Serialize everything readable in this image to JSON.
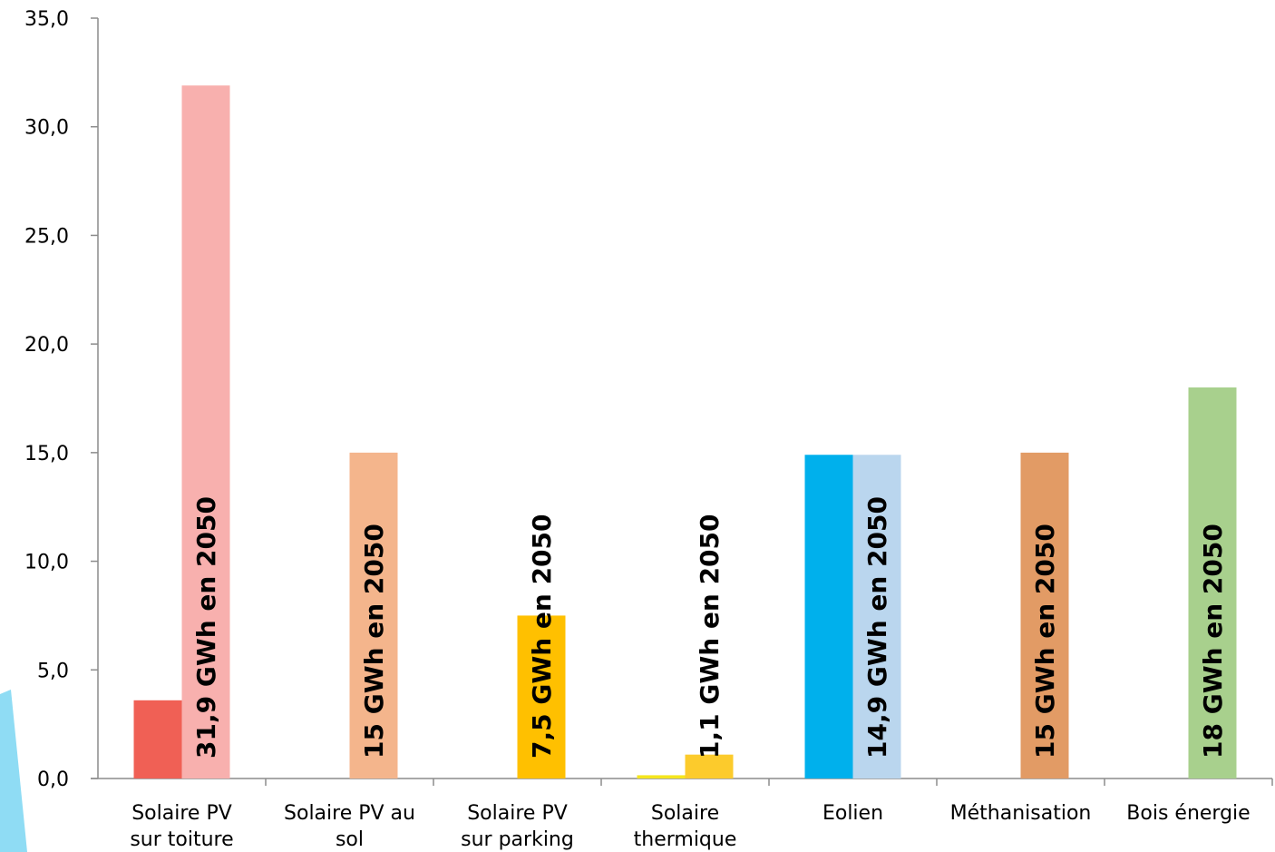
{
  "chart_data": {
    "type": "bar",
    "categories": [
      [
        "Solaire PV",
        "sur toiture"
      ],
      [
        "Solaire PV au",
        "sol"
      ],
      [
        "Solaire PV",
        "sur parking"
      ],
      [
        "Solaire",
        "thermique"
      ],
      [
        "Eolien"
      ],
      [
        "Méthanisation"
      ],
      [
        "Bois énergie"
      ]
    ],
    "ylim": [
      0,
      35
    ],
    "yticks": [
      "0,0",
      "5,0",
      "10,0",
      "15,0",
      "20,0",
      "25,0",
      "30,0",
      "35,0"
    ],
    "grid": false,
    "legend": "none",
    "series": [
      {
        "values": [
          3.6,
          null,
          null,
          0.15,
          14.9,
          null,
          null
        ],
        "colors": [
          "#f06055",
          null,
          null,
          "#f5e61e",
          "#00b0ec",
          null,
          null
        ]
      },
      {
        "values": [
          31.9,
          15,
          7.5,
          1.1,
          14.9,
          15,
          18
        ],
        "colors": [
          "#f8b0ae",
          "#f4b58c",
          "#ffc000",
          "#fccb2c",
          "#bad6ee",
          "#e29b65",
          "#a8d08d"
        ],
        "labels": [
          "31,9 GWh en 2050",
          "15 GWh en 2050",
          "7,5 GWh en 2050",
          "1,1 GWh en 2050",
          "14,9 GWh en 2050",
          "15 GWh en 2050",
          "18 GWh en 2050"
        ]
      }
    ]
  }
}
